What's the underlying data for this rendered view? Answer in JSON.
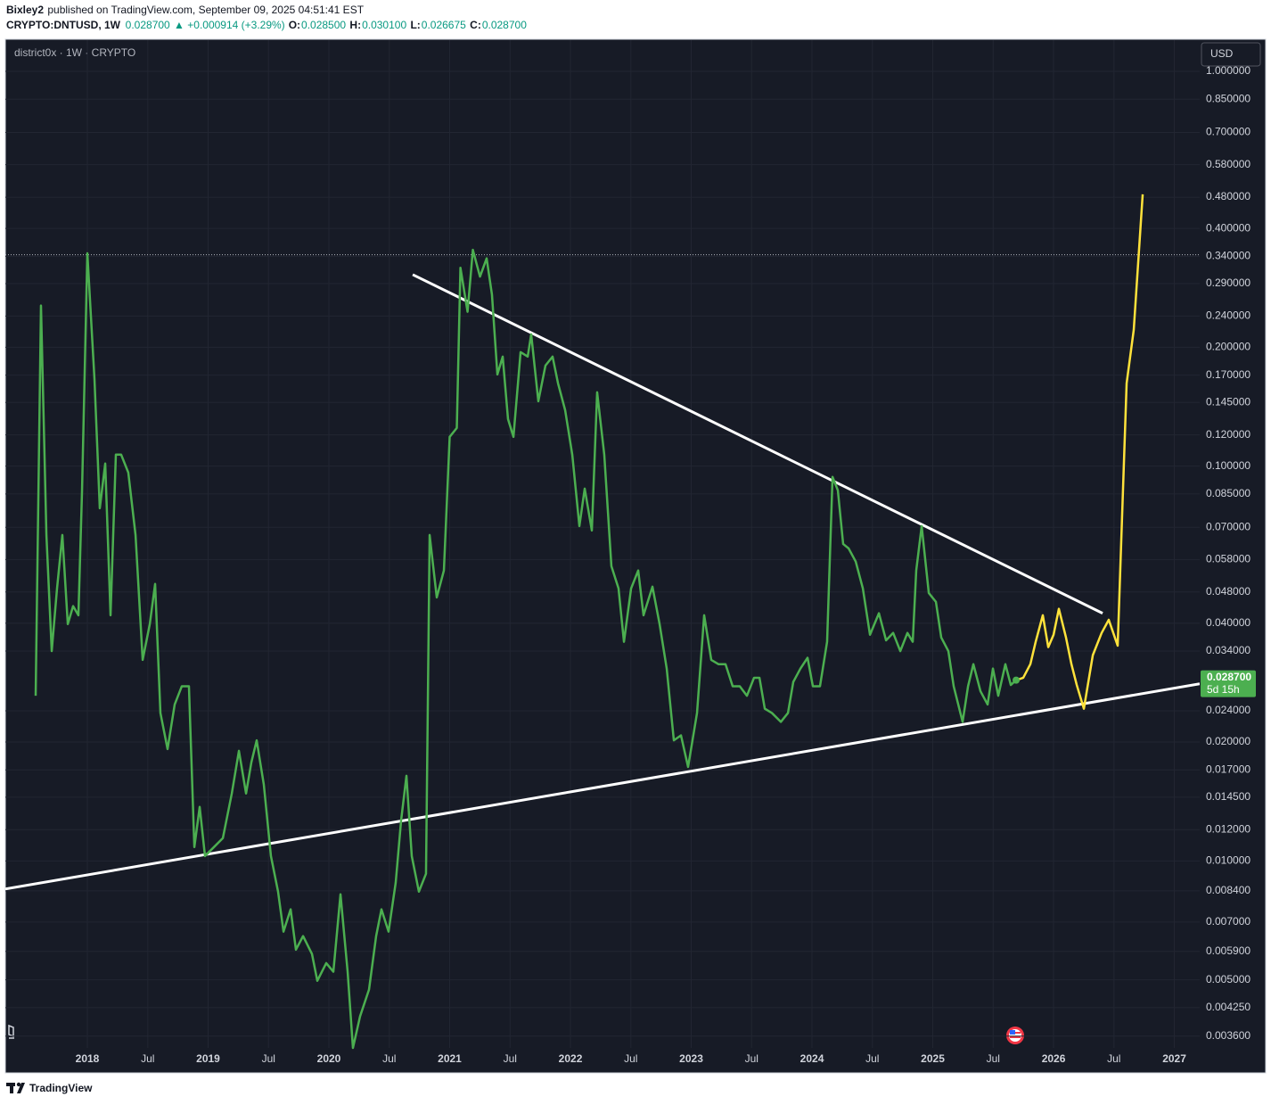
{
  "header": {
    "author": "Bixley2",
    "published": "published on TradingView.com, September 09, 2025 04:51:41 EST",
    "symbol": "CRYPTO:DNTUSD, 1W",
    "last": "0.028700",
    "change": "▲ +0.000914 (+3.29%)",
    "ohlc": [
      {
        "label": "O:",
        "value": "0.028500"
      },
      {
        "label": "H:",
        "value": "0.030100"
      },
      {
        "label": "L:",
        "value": "0.026675"
      },
      {
        "label": "C:",
        "value": "0.028700"
      }
    ]
  },
  "footer": {
    "brand": "TradingView"
  },
  "chart_data": {
    "type": "line",
    "legend_text": "district0x · 1W · CRYPTO",
    "currency": "USD",
    "log_scale": true,
    "grid": true,
    "xlim": [
      2017.321,
      2027.21
    ],
    "ylim": [
      0.00336,
      1.187
    ],
    "xticks": [
      2018,
      {
        "value": 2018.5,
        "label": "Jul"
      },
      2019,
      {
        "value": 2019.5,
        "label": "Jul"
      },
      2020,
      {
        "value": 2020.5,
        "label": "Jul"
      },
      2021,
      {
        "value": 2021.5,
        "label": "Jul"
      },
      2022,
      {
        "value": 2022.5,
        "label": "Jul"
      },
      2023,
      {
        "value": 2023.5,
        "label": "Jul"
      },
      2024,
      {
        "value": 2024.5,
        "label": "Jul"
      },
      2025,
      {
        "value": 2025.5,
        "label": "Jul"
      },
      2026,
      {
        "value": 2026.5,
        "label": "Jul"
      },
      2027
    ],
    "yticks": [
      {
        "value": 1,
        "label": "1.000000"
      },
      {
        "value": 0.85,
        "label": "0.850000"
      },
      {
        "value": 0.7,
        "label": "0.700000"
      },
      {
        "value": 0.58,
        "label": "0.580000"
      },
      {
        "value": 0.48,
        "label": "0.480000"
      },
      {
        "value": 0.4,
        "label": "0.400000"
      },
      {
        "value": 0.34,
        "label": "0.340000"
      },
      {
        "value": 0.29,
        "label": "0.290000"
      },
      {
        "value": 0.24,
        "label": "0.240000"
      },
      {
        "value": 0.2,
        "label": "0.200000"
      },
      {
        "value": 0.17,
        "label": "0.170000"
      },
      {
        "value": 0.145,
        "label": "0.145000"
      },
      {
        "value": 0.12,
        "label": "0.120000"
      },
      {
        "value": 0.1,
        "label": "0.100000"
      },
      {
        "value": 0.085,
        "label": "0.085000"
      },
      {
        "value": 0.07,
        "label": "0.070000"
      },
      {
        "value": 0.058,
        "label": "0.058000"
      },
      {
        "value": 0.048,
        "label": "0.048000"
      },
      {
        "value": 0.04,
        "label": "0.040000"
      },
      {
        "value": 0.034,
        "label": "0.034000"
      },
      {
        "value": 0.024,
        "label": "0.024000"
      },
      {
        "value": 0.02,
        "label": "0.020000"
      },
      {
        "value": 0.017,
        "label": "0.017000"
      },
      {
        "value": 0.0145,
        "label": "0.014500"
      },
      {
        "value": 0.012,
        "label": "0.012000"
      },
      {
        "value": 0.01,
        "label": "0.010000"
      },
      {
        "value": 0.0084,
        "label": "0.008400"
      },
      {
        "value": 0.007,
        "label": "0.007000"
      },
      {
        "value": 0.0059,
        "label": "0.005900"
      },
      {
        "value": 0.005,
        "label": "0.005000"
      },
      {
        "value": 0.00425,
        "label": "0.004250"
      },
      {
        "value": 0.0036,
        "label": "0.003600"
      }
    ],
    "hline": 0.343,
    "price_label": {
      "value": 0.0287,
      "label": "0.028700"
    },
    "countdown": "5d 15h",
    "series": [
      {
        "color": "#4caf50",
        "x": [
          2017.572,
          2017.616,
          2017.661,
          2017.705,
          2017.749,
          2017.793,
          2017.838,
          2017.882,
          2017.926,
          2017.956,
          2018.0,
          2018.059,
          2018.103,
          2018.148,
          2018.192,
          2018.236,
          2018.28,
          2018.339,
          2018.399,
          2018.458,
          2018.517,
          2018.561,
          2018.605,
          2018.664,
          2018.723,
          2018.782,
          2018.841,
          2018.886,
          2018.93,
          2018.974,
          2019.048,
          2019.122,
          2019.196,
          2019.255,
          2019.314,
          2019.358,
          2019.402,
          2019.461,
          2019.52,
          2019.579,
          2019.624,
          2019.683,
          2019.727,
          2019.786,
          2019.86,
          2019.904,
          2019.978,
          2020.037,
          2020.096,
          2020.155,
          2020.199,
          2020.258,
          2020.332,
          2020.391,
          2020.435,
          2020.494,
          2020.553,
          2020.598,
          2020.642,
          2020.686,
          2020.745,
          2020.804,
          2020.834,
          2020.893,
          2020.952,
          2021.0,
          2021.059,
          2021.089,
          2021.148,
          2021.192,
          2021.251,
          2021.306,
          2021.35,
          2021.395,
          2021.439,
          2021.483,
          2021.528,
          2021.587,
          2021.646,
          2021.675,
          2021.734,
          2021.793,
          2021.852,
          2021.897,
          2021.956,
          2022.015,
          2022.074,
          2022.118,
          2022.177,
          2022.221,
          2022.28,
          2022.339,
          2022.398,
          2022.443,
          2022.502,
          2022.561,
          2022.605,
          2022.679,
          2022.738,
          2022.797,
          2022.856,
          2022.915,
          2022.974,
          2023.048,
          2023.107,
          2023.166,
          2023.225,
          2023.284,
          2023.343,
          2023.402,
          2023.461,
          2023.52,
          2023.565,
          2023.609,
          2023.668,
          2023.742,
          2023.801,
          2023.845,
          2023.904,
          2023.963,
          2024.007,
          2024.066,
          2024.125,
          2024.17,
          2024.214,
          2024.258,
          2024.303,
          2024.362,
          2024.421,
          2024.48,
          2024.554,
          2024.613,
          2024.672,
          2024.731,
          2024.79,
          2024.834,
          2024.863,
          2024.908,
          2024.967,
          2025.026,
          2025.07,
          2025.129,
          2025.173,
          2025.247,
          2025.292,
          2025.336,
          2025.395,
          2025.454,
          2025.498,
          2025.542,
          2025.601,
          2025.646,
          2025.69
        ],
        "values": [
          0.0262,
          0.255,
          0.0669,
          0.034,
          0.049,
          0.0669,
          0.0398,
          0.0442,
          0.0419,
          0.0868,
          0.346,
          0.166,
          0.0782,
          0.1015,
          0.0419,
          0.1069,
          0.1069,
          0.0963,
          0.0669,
          0.0323,
          0.0398,
          0.0503,
          0.0237,
          0.0192,
          0.0249,
          0.0277,
          0.0277,
          0.01084,
          0.0137,
          0.01029,
          0.01084,
          0.01142,
          0.01482,
          0.019,
          0.01482,
          0.01777,
          0.0202,
          0.01561,
          0.01029,
          0.00836,
          0.00662,
          0.00754,
          0.00596,
          0.00645,
          0.00581,
          0.00497,
          0.00551,
          0.00524,
          0.00823,
          0.00524,
          0.00336,
          0.00404,
          0.00472,
          0.00645,
          0.00754,
          0.00662,
          0.00881,
          0.01268,
          0.01643,
          0.01029,
          0.00836,
          0.00928,
          0.0669,
          0.0465,
          0.0544,
          0.1186,
          0.1249,
          0.318,
          0.246,
          0.353,
          0.302,
          0.336,
          0.272,
          0.1707,
          0.1894,
          0.1316,
          0.1186,
          0.1944,
          0.1894,
          0.2157,
          0.146,
          0.1798,
          0.1894,
          0.1621,
          0.1386,
          0.1069,
          0.0705,
          0.0877,
          0.0687,
          0.1538,
          0.1069,
          0.0558,
          0.049,
          0.0359,
          0.049,
          0.0544,
          0.0419,
          0.0495,
          0.0398,
          0.0307,
          0.0202,
          0.0208,
          0.0173,
          0.0237,
          0.0419,
          0.0323,
          0.0315,
          0.0315,
          0.0277,
          0.0277,
          0.0262,
          0.0291,
          0.0291,
          0.0243,
          0.0237,
          0.0225,
          0.0237,
          0.0284,
          0.0307,
          0.0327,
          0.0277,
          0.0277,
          0.0359,
          0.0939,
          0.0868,
          0.0635,
          0.0619,
          0.0573,
          0.049,
          0.0374,
          0.0424,
          0.0362,
          0.0378,
          0.034,
          0.0378,
          0.0359,
          0.0544,
          0.0705,
          0.0477,
          0.0453,
          0.0368,
          0.034,
          0.0277,
          0.0225,
          0.0277,
          0.0315,
          0.0269,
          0.0249,
          0.0307,
          0.0262,
          0.0315,
          0.0279,
          0.0287
        ]
      },
      {
        "color": "#ffe23b",
        "x": [
          2025.69,
          2025.749,
          2025.808,
          2025.852,
          2025.911,
          2025.956,
          2026.0,
          2026.044,
          2026.103,
          2026.148,
          2026.192,
          2026.251,
          2026.325,
          2026.398,
          2026.457,
          2026.531,
          2026.605,
          2026.664,
          2026.738
        ],
        "values": [
          0.0287,
          0.0291,
          0.0315,
          0.0359,
          0.0419,
          0.0348,
          0.0374,
          0.0435,
          0.0368,
          0.0315,
          0.0279,
          0.0243,
          0.0332,
          0.0378,
          0.0408,
          0.0351,
          0.1621,
          0.2214,
          0.488
        ]
      }
    ],
    "trendlines": [
      {
        "color": "#ffffff",
        "x": [
          2020.694,
          2026.406
        ],
        "values": [
          0.3055,
          0.0424
        ]
      },
      {
        "color": "#ffffff",
        "x": [
          2017.321,
          2027.21
        ],
        "values": [
          0.00849,
          0.0281
        ]
      }
    ]
  }
}
